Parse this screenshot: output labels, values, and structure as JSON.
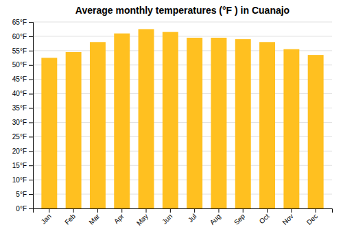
{
  "chart_data": {
    "type": "bar",
    "title": "Average monthly temperatures (°F ) in Cuanajo",
    "categories": [
      "Jan",
      "Feb",
      "Mar",
      "Apr",
      "May",
      "Jun",
      "Jul",
      "Aug",
      "Sep",
      "Oct",
      "Nov",
      "Dec"
    ],
    "values": [
      52.5,
      54.5,
      58.0,
      61.0,
      62.5,
      61.5,
      59.5,
      59.5,
      59.0,
      58.0,
      55.5,
      53.5
    ],
    "color": "#FFC020",
    "ylim": [
      0,
      65
    ],
    "yticks": [
      {
        "value": 0,
        "label": "0°F"
      },
      {
        "value": 5,
        "label": "5°F"
      },
      {
        "value": 10,
        "label": "10°F"
      },
      {
        "value": 15,
        "label": "15°F"
      },
      {
        "value": 20,
        "label": "20°F"
      },
      {
        "value": 25,
        "label": "25°F"
      },
      {
        "value": 30,
        "label": "30°F"
      },
      {
        "value": 35,
        "label": "35°F"
      },
      {
        "value": 40,
        "label": "40°F"
      },
      {
        "value": 45,
        "label": "45°F"
      },
      {
        "value": 50,
        "label": "50°F"
      },
      {
        "value": 55,
        "label": "55°F"
      },
      {
        "value": 60,
        "label": "60°F"
      },
      {
        "value": 65,
        "label": "65°F"
      }
    ],
    "grid": true
  }
}
